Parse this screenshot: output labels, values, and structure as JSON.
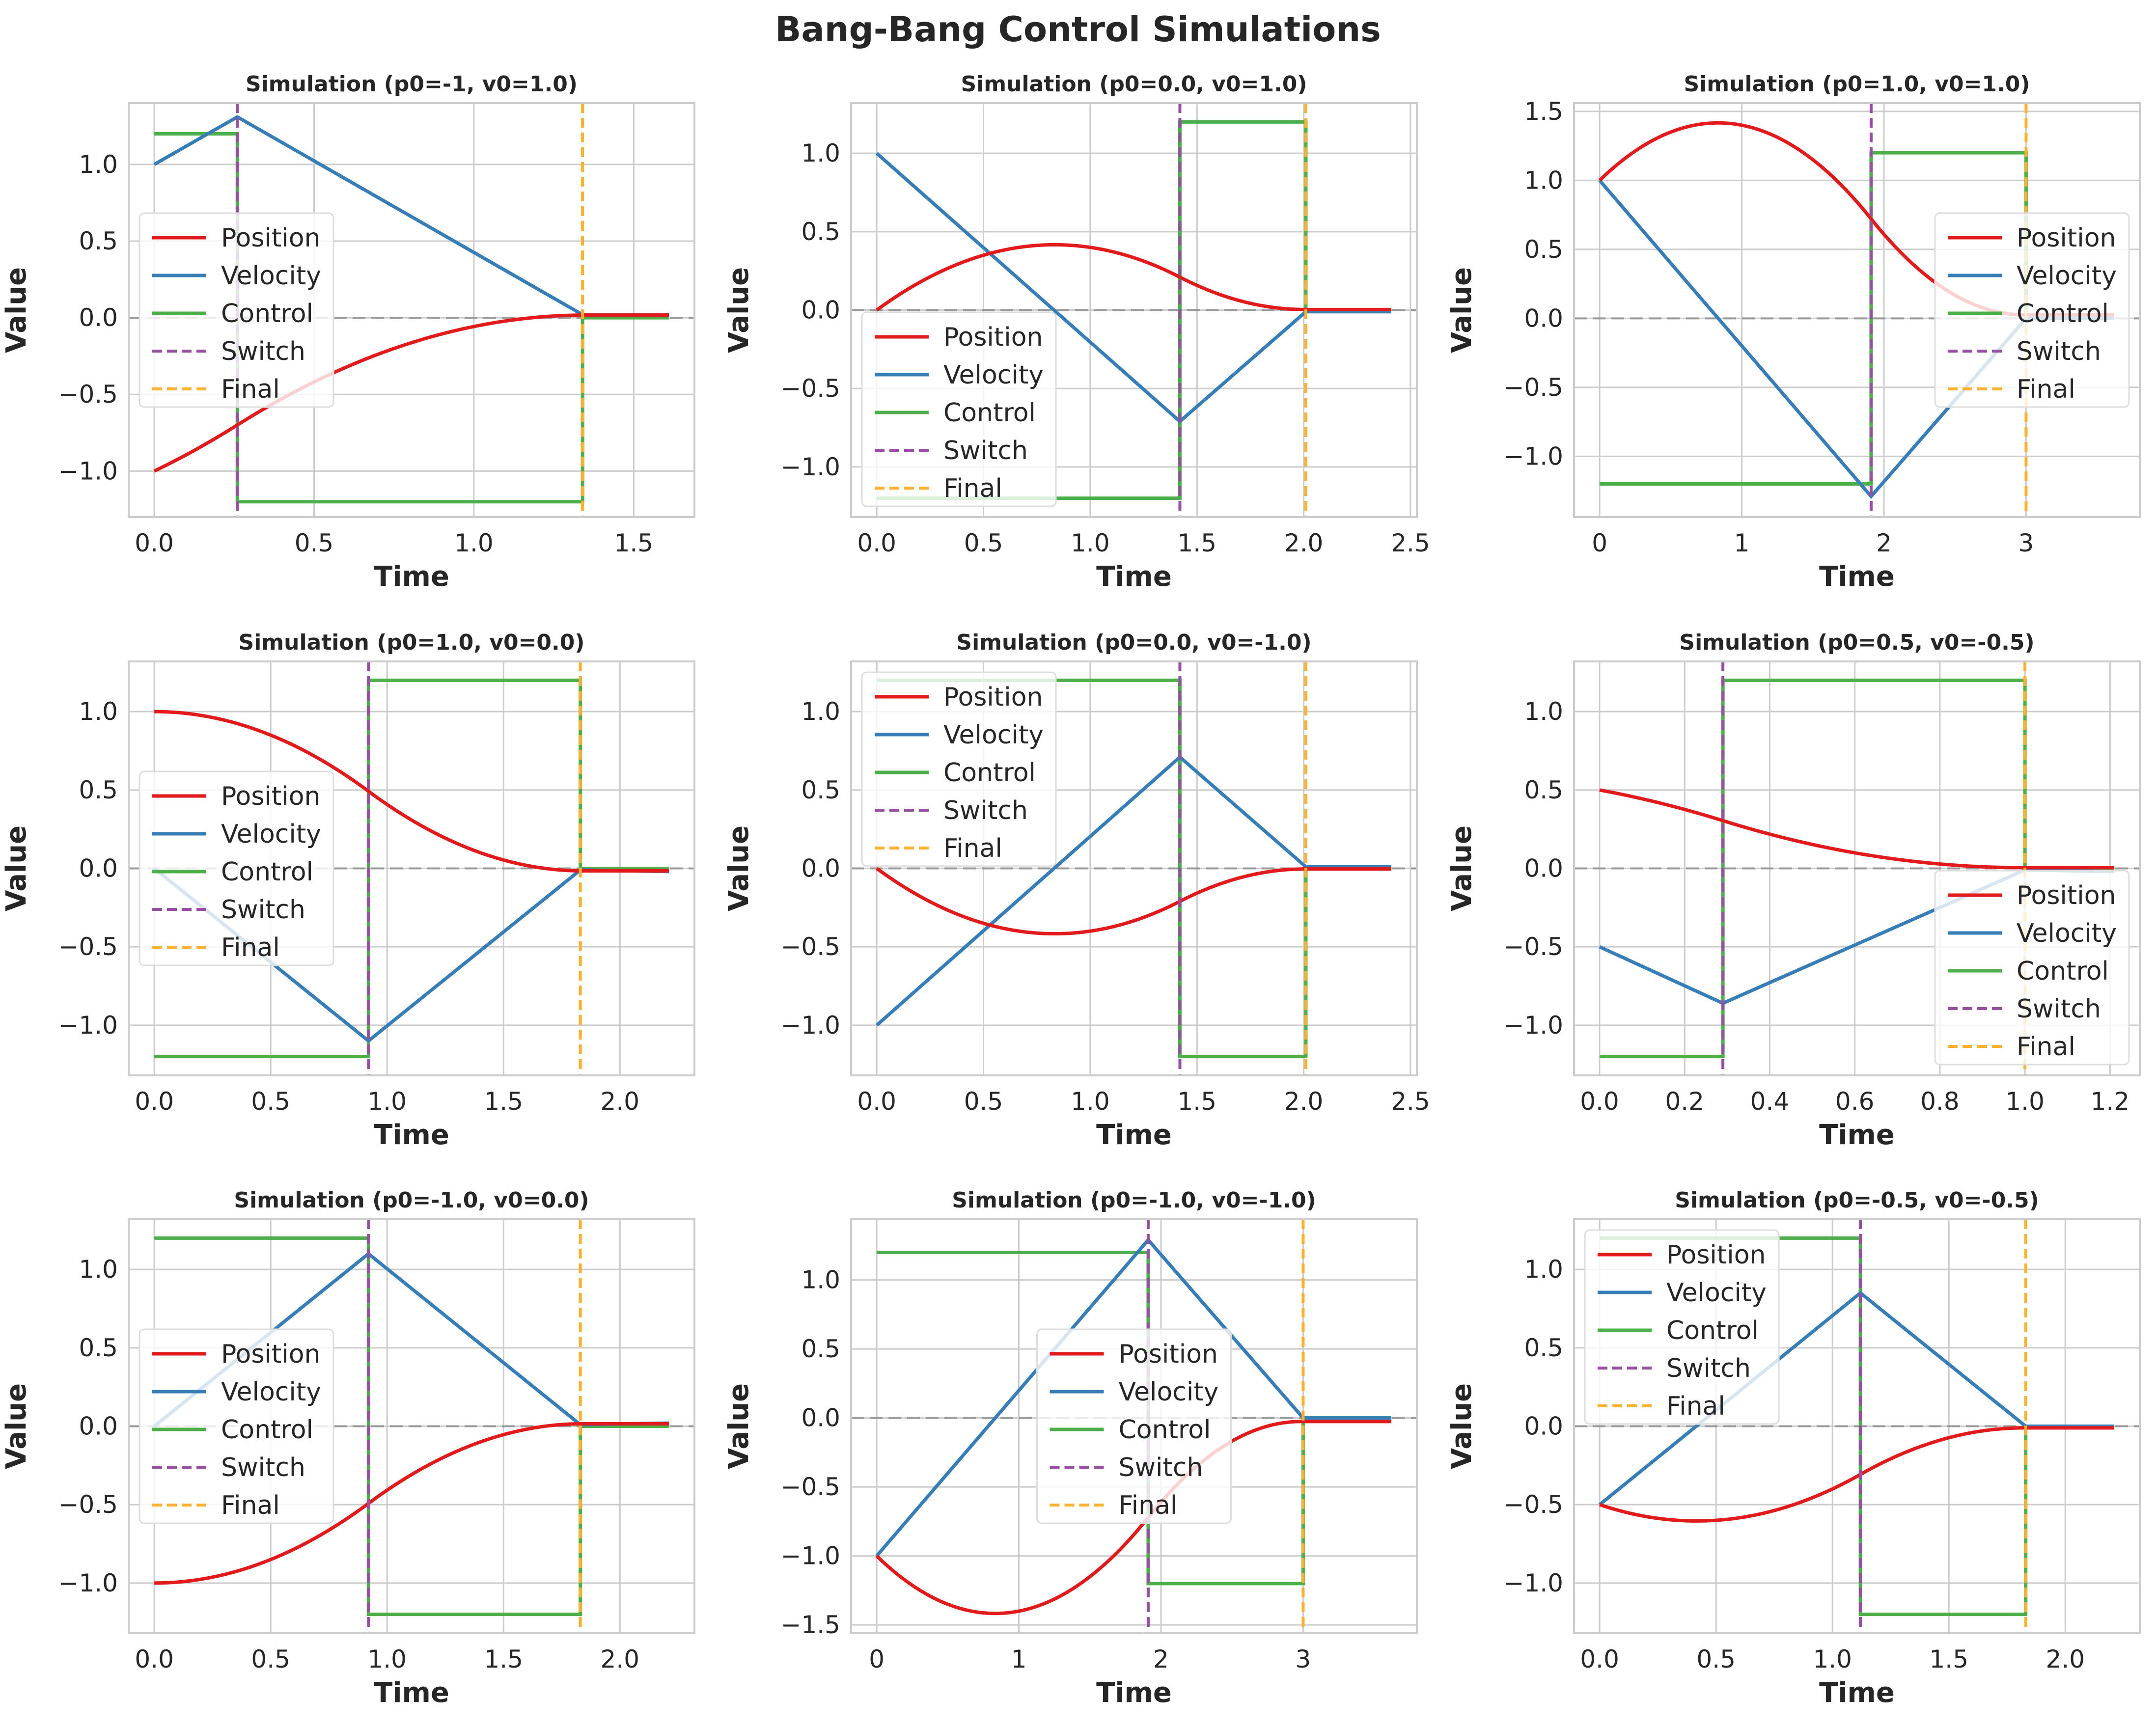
{
  "figure_title": "Bang-Bang Control Simulations",
  "colors": {
    "position": "#e31a1c",
    "velocity": "#377eb8",
    "control": "#4daf4a",
    "switch": "#984ea3",
    "final": "#ffb02e",
    "zero_line": "#999999",
    "grid": "#cccccc",
    "frame": "#cccccc"
  },
  "legend_labels": [
    "Position",
    "Velocity",
    "Control",
    "Switch",
    "Final"
  ],
  "chart_data": [
    {
      "type": "line",
      "title": "Simulation (p0=-1, v0=1.0)",
      "xlabel": "Time",
      "ylabel": "Value",
      "p0": -1.0,
      "v0": 1.0,
      "u_first": 1.2,
      "t_switch": 0.26,
      "t_final": 1.34,
      "t_end": 1.61,
      "xlim": [
        -0.08,
        1.69
      ],
      "ylim": [
        -1.3,
        1.4
      ],
      "xticks": [
        0,
        0.5,
        1.0,
        1.5
      ],
      "xtick_labels": [
        "0.0",
        "0.5",
        "1.0",
        "1.5"
      ],
      "yticks": [
        -1.0,
        -0.5,
        0.0,
        0.5,
        1.0
      ],
      "ytick_labels": [
        "−1.0",
        "−0.5",
        "0.0",
        "0.5",
        "1.0"
      ],
      "legend": {
        "position": "center-left"
      },
      "series": [
        {
          "name": "Position",
          "x": [
            0,
            0.26,
            1.34,
            1.61
          ],
          "y": [
            -1.0,
            -0.7,
            0.01,
            0.02
          ]
        },
        {
          "name": "Velocity",
          "x": [
            0,
            0.26,
            1.34,
            1.61
          ],
          "y": [
            1.0,
            1.31,
            0.02,
            0.02
          ]
        },
        {
          "name": "Control",
          "x": [
            0,
            0.26,
            0.26,
            1.34,
            1.34,
            1.61
          ],
          "y": [
            1.2,
            1.2,
            -1.2,
            -1.2,
            0,
            0
          ]
        },
        {
          "name": "Switch",
          "x": [
            0.26
          ]
        },
        {
          "name": "Final",
          "x": [
            1.34
          ]
        }
      ]
    },
    {
      "type": "line",
      "title": "Simulation (p0=0.0, v0=1.0)",
      "xlabel": "Time",
      "ylabel": "Value",
      "p0": 0.0,
      "v0": 1.0,
      "u_first": -1.2,
      "t_switch": 1.42,
      "t_final": 2.01,
      "t_end": 2.41,
      "xlim": [
        -0.12,
        2.53
      ],
      "ylim": [
        -1.32,
        1.32
      ],
      "xticks": [
        0,
        0.5,
        1.0,
        1.5,
        2.0,
        2.5
      ],
      "xtick_labels": [
        "0.0",
        "0.5",
        "1.0",
        "1.5",
        "2.0",
        "2.5"
      ],
      "yticks": [
        -1.0,
        -0.5,
        0.0,
        0.5,
        1.0
      ],
      "ytick_labels": [
        "−1.0",
        "−0.5",
        "0.0",
        "0.5",
        "1.0"
      ],
      "legend": {
        "position": "lower-left"
      },
      "series": [
        {
          "name": "Position",
          "x": [
            0,
            0.83,
            1.42,
            2.01,
            2.41
          ],
          "y": [
            0.0,
            0.42,
            0.21,
            -0.01,
            -0.01
          ]
        },
        {
          "name": "Velocity",
          "x": [
            0,
            1.42,
            2.01,
            2.41
          ],
          "y": [
            1.0,
            -0.71,
            -0.01,
            -0.01
          ]
        },
        {
          "name": "Control",
          "x": [
            0,
            1.42,
            1.42,
            2.01,
            2.01,
            2.41
          ],
          "y": [
            -1.2,
            -1.2,
            1.2,
            1.2,
            0,
            0
          ]
        },
        {
          "name": "Switch",
          "x": [
            1.42
          ]
        },
        {
          "name": "Final",
          "x": [
            2.01
          ]
        }
      ]
    },
    {
      "type": "line",
      "title": "Simulation (p0=1.0, v0=1.0)",
      "xlabel": "Time",
      "ylabel": "Value",
      "p0": 1.0,
      "v0": 1.0,
      "u_first": -1.2,
      "t_switch": 1.91,
      "t_final": 3.0,
      "t_end": 3.62,
      "xlim": [
        -0.18,
        3.8
      ],
      "ylim": [
        -1.44,
        1.56
      ],
      "xticks": [
        0,
        1,
        2,
        3
      ],
      "xtick_labels": [
        "0",
        "1",
        "2",
        "3"
      ],
      "yticks": [
        -1.0,
        -0.5,
        0.0,
        0.5,
        1.0,
        1.5
      ],
      "ytick_labels": [
        "−1.0",
        "−0.5",
        "0.0",
        "0.5",
        "1.0",
        "1.5"
      ],
      "legend": {
        "position": "center-right"
      },
      "series": [
        {
          "name": "Position",
          "x": [
            0,
            0.83,
            1.91,
            3.0,
            3.62
          ],
          "y": [
            1.0,
            1.42,
            0.71,
            0.0,
            0.0
          ]
        },
        {
          "name": "Velocity",
          "x": [
            0,
            1.91,
            3.0,
            3.62
          ],
          "y": [
            1.0,
            -1.29,
            0.0,
            0.0
          ]
        },
        {
          "name": "Control",
          "x": [
            0,
            1.91,
            1.91,
            3.0,
            3.0,
            3.62
          ],
          "y": [
            -1.2,
            -1.2,
            1.2,
            1.2,
            0,
            0
          ]
        },
        {
          "name": "Switch",
          "x": [
            1.91
          ]
        },
        {
          "name": "Final",
          "x": [
            3.0
          ]
        }
      ]
    },
    {
      "type": "line",
      "title": "Simulation (p0=1.0, v0=0.0)",
      "xlabel": "Time",
      "ylabel": "Value",
      "p0": 1.0,
      "v0": 0.0,
      "u_first": -1.2,
      "t_switch": 0.92,
      "t_final": 1.83,
      "t_end": 2.21,
      "xlim": [
        -0.11,
        2.32
      ],
      "ylim": [
        -1.32,
        1.32
      ],
      "xticks": [
        0,
        0.5,
        1.0,
        1.5,
        2.0
      ],
      "xtick_labels": [
        "0.0",
        "0.5",
        "1.0",
        "1.5",
        "2.0"
      ],
      "yticks": [
        -1.0,
        -0.5,
        0.0,
        0.5,
        1.0
      ],
      "ytick_labels": [
        "−1.0",
        "−0.5",
        "0.0",
        "0.5",
        "1.0"
      ],
      "legend": {
        "position": "center-left"
      },
      "series": [
        {
          "name": "Position",
          "x": [
            0,
            0.92,
            1.83,
            2.21
          ],
          "y": [
            1.0,
            0.49,
            -0.01,
            -0.02
          ]
        },
        {
          "name": "Velocity",
          "x": [
            0,
            0.92,
            1.83,
            2.21
          ],
          "y": [
            0.0,
            -1.1,
            -0.01,
            -0.02
          ]
        },
        {
          "name": "Control",
          "x": [
            0,
            0.92,
            0.92,
            1.83,
            1.83,
            2.21
          ],
          "y": [
            -1.2,
            -1.2,
            1.2,
            1.2,
            0,
            0
          ]
        },
        {
          "name": "Switch",
          "x": [
            0.92
          ]
        },
        {
          "name": "Final",
          "x": [
            1.83
          ]
        }
      ]
    },
    {
      "type": "line",
      "title": "Simulation (p0=0.0, v0=-1.0)",
      "xlabel": "Time",
      "ylabel": "Value",
      "p0": 0.0,
      "v0": -1.0,
      "u_first": 1.2,
      "t_switch": 1.42,
      "t_final": 2.01,
      "t_end": 2.41,
      "xlim": [
        -0.12,
        2.53
      ],
      "ylim": [
        -1.32,
        1.32
      ],
      "xticks": [
        0,
        0.5,
        1.0,
        1.5,
        2.0,
        2.5
      ],
      "xtick_labels": [
        "0.0",
        "0.5",
        "1.0",
        "1.5",
        "2.0",
        "2.5"
      ],
      "yticks": [
        -1.0,
        -0.5,
        0.0,
        0.5,
        1.0
      ],
      "ytick_labels": [
        "−1.0",
        "−0.5",
        "0.0",
        "0.5",
        "1.0"
      ],
      "legend": {
        "position": "upper-left"
      },
      "series": [
        {
          "name": "Position",
          "x": [
            0,
            0.83,
            1.42,
            2.01,
            2.41
          ],
          "y": [
            0.0,
            -0.42,
            -0.21,
            0.01,
            0.01
          ]
        },
        {
          "name": "Velocity",
          "x": [
            0,
            1.42,
            2.01,
            2.41
          ],
          "y": [
            -1.0,
            0.71,
            0.01,
            0.01
          ]
        },
        {
          "name": "Control",
          "x": [
            0,
            1.42,
            1.42,
            2.01,
            2.01,
            2.41
          ],
          "y": [
            1.2,
            1.2,
            -1.2,
            -1.2,
            0,
            0
          ]
        },
        {
          "name": "Switch",
          "x": [
            1.42
          ]
        },
        {
          "name": "Final",
          "x": [
            2.01
          ]
        }
      ]
    },
    {
      "type": "line",
      "title": "Simulation (p0=0.5, v0=-0.5)",
      "xlabel": "Time",
      "ylabel": "Value",
      "p0": 0.5,
      "v0": -0.5,
      "u_first": -1.2,
      "t_switch": 0.29,
      "t_final": 1.0,
      "t_end": 1.21,
      "xlim": [
        -0.06,
        1.27
      ],
      "ylim": [
        -1.32,
        1.32
      ],
      "xticks": [
        0,
        0.2,
        0.4,
        0.6,
        0.8,
        1.0,
        1.2
      ],
      "xtick_labels": [
        "0.0",
        "0.2",
        "0.4",
        "0.6",
        "0.8",
        "1.0",
        "1.2"
      ],
      "yticks": [
        -1.0,
        -0.5,
        0.0,
        0.5,
        1.0
      ],
      "ytick_labels": [
        "−1.0",
        "−0.5",
        "0.0",
        "0.5",
        "1.0"
      ],
      "legend": {
        "position": "lower-right"
      },
      "series": [
        {
          "name": "Position",
          "x": [
            0,
            0.29,
            1.0,
            1.21
          ],
          "y": [
            0.5,
            0.3,
            -0.01,
            -0.02
          ]
        },
        {
          "name": "Velocity",
          "x": [
            0,
            0.29,
            1.0,
            1.21
          ],
          "y": [
            -0.5,
            -0.86,
            -0.01,
            -0.02
          ]
        },
        {
          "name": "Control",
          "x": [
            0,
            0.29,
            0.29,
            1.0,
            1.0,
            1.21
          ],
          "y": [
            -1.2,
            -1.2,
            1.2,
            1.2,
            0,
            0
          ]
        },
        {
          "name": "Switch",
          "x": [
            0.29
          ]
        },
        {
          "name": "Final",
          "x": [
            1.0
          ]
        }
      ]
    },
    {
      "type": "line",
      "title": "Simulation (p0=-1.0, v0=0.0)",
      "xlabel": "Time",
      "ylabel": "Value",
      "p0": -1.0,
      "v0": 0.0,
      "u_first": 1.2,
      "t_switch": 0.92,
      "t_final": 1.83,
      "t_end": 2.21,
      "xlim": [
        -0.11,
        2.32
      ],
      "ylim": [
        -1.32,
        1.32
      ],
      "xticks": [
        0,
        0.5,
        1.0,
        1.5,
        2.0
      ],
      "xtick_labels": [
        "0.0",
        "0.5",
        "1.0",
        "1.5",
        "2.0"
      ],
      "yticks": [
        -1.0,
        -0.5,
        0.0,
        0.5,
        1.0
      ],
      "ytick_labels": [
        "−1.0",
        "−0.5",
        "0.0",
        "0.5",
        "1.0"
      ],
      "legend": {
        "position": "center-left"
      },
      "series": [
        {
          "name": "Position",
          "x": [
            0,
            0.92,
            1.83,
            2.21
          ],
          "y": [
            -1.0,
            -0.49,
            0.01,
            0.02
          ]
        },
        {
          "name": "Velocity",
          "x": [
            0,
            0.92,
            1.83,
            2.21
          ],
          "y": [
            0.0,
            1.1,
            0.01,
            0.02
          ]
        },
        {
          "name": "Control",
          "x": [
            0,
            0.92,
            0.92,
            1.83,
            1.83,
            2.21
          ],
          "y": [
            1.2,
            1.2,
            -1.2,
            -1.2,
            0,
            0
          ]
        },
        {
          "name": "Switch",
          "x": [
            0.92
          ]
        },
        {
          "name": "Final",
          "x": [
            1.83
          ]
        }
      ]
    },
    {
      "type": "line",
      "title": "Simulation (p0=-1.0, v0=-1.0)",
      "xlabel": "Time",
      "ylabel": "Value",
      "p0": -1.0,
      "v0": -1.0,
      "u_first": 1.2,
      "t_switch": 1.91,
      "t_final": 3.0,
      "t_end": 3.62,
      "xlim": [
        -0.18,
        3.8
      ],
      "ylim": [
        -1.56,
        1.44
      ],
      "xticks": [
        0,
        1,
        2,
        3
      ],
      "xtick_labels": [
        "0",
        "1",
        "2",
        "3"
      ],
      "yticks": [
        -1.5,
        -1.0,
        -0.5,
        0.0,
        0.5,
        1.0
      ],
      "ytick_labels": [
        "−1.5",
        "−1.0",
        "−0.5",
        "0.0",
        "0.5",
        "1.0"
      ],
      "legend": {
        "position": "center"
      },
      "series": [
        {
          "name": "Position",
          "x": [
            0,
            0.83,
            1.91,
            3.0,
            3.62
          ],
          "y": [
            -1.0,
            -1.42,
            -0.71,
            0.0,
            0.0
          ]
        },
        {
          "name": "Velocity",
          "x": [
            0,
            1.91,
            3.0,
            3.62
          ],
          "y": [
            -1.0,
            1.29,
            0.0,
            0.0
          ]
        },
        {
          "name": "Control",
          "x": [
            0,
            1.91,
            1.91,
            3.0,
            3.0,
            3.62
          ],
          "y": [
            1.2,
            1.2,
            -1.2,
            -1.2,
            0,
            0
          ]
        },
        {
          "name": "Switch",
          "x": [
            1.91
          ]
        },
        {
          "name": "Final",
          "x": [
            3.0
          ]
        }
      ]
    },
    {
      "type": "line",
      "title": "Simulation (p0=-0.5, v0=-0.5)",
      "xlabel": "Time",
      "ylabel": "Value",
      "p0": -0.5,
      "v0": -0.5,
      "u_first": 1.2,
      "t_switch": 1.12,
      "t_final": 1.83,
      "t_end": 2.21,
      "xlim": [
        -0.11,
        2.32
      ],
      "ylim": [
        -1.32,
        1.32
      ],
      "xticks": [
        0,
        0.5,
        1.0,
        1.5,
        2.0
      ],
      "xtick_labels": [
        "0.0",
        "0.5",
        "1.0",
        "1.5",
        "2.0"
      ],
      "yticks": [
        -1.0,
        -0.5,
        0.0,
        0.5,
        1.0
      ],
      "ytick_labels": [
        "−1.0",
        "−0.5",
        "0.0",
        "0.5",
        "1.0"
      ],
      "legend": {
        "position": "upper-left"
      },
      "series": [
        {
          "name": "Position",
          "x": [
            0,
            0.42,
            1.12,
            1.83,
            2.21
          ],
          "y": [
            -0.5,
            -0.6,
            -0.31,
            0.0,
            0.0
          ]
        },
        {
          "name": "Velocity",
          "x": [
            0,
            1.12,
            1.83,
            2.21
          ],
          "y": [
            -0.5,
            0.85,
            0.0,
            0.0
          ]
        },
        {
          "name": "Control",
          "x": [
            0,
            1.12,
            1.12,
            1.83,
            1.83,
            2.21
          ],
          "y": [
            1.2,
            1.2,
            -1.2,
            -1.2,
            0,
            0
          ]
        },
        {
          "name": "Switch",
          "x": [
            1.12
          ]
        },
        {
          "name": "Final",
          "x": [
            1.83
          ]
        }
      ]
    }
  ]
}
